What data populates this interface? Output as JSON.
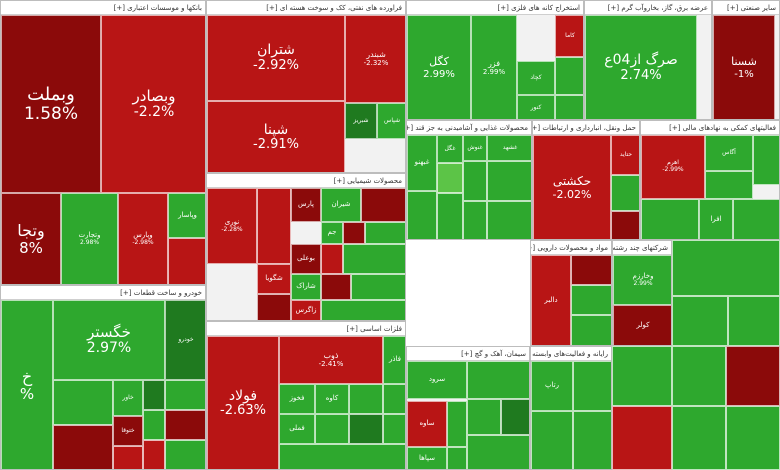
{
  "chart_data": {
    "type": "treemap",
    "colors": {
      "dark_red": "#8b0a0a",
      "red": "#b81515",
      "bright_red": "#e01818",
      "dark_green": "#1f7a1f",
      "green": "#2ea82e",
      "light_green": "#5cc447"
    },
    "sectors": [
      {
        "name": "بانکها و موسسات اعتباری [+]",
        "tiles": [
          {
            "symbol": "وبملت",
            "change": "1.58%"
          },
          {
            "symbol": "وبصادر",
            "change": "-2.2%"
          },
          {
            "symbol": "وتجا",
            "change": "8%"
          },
          {
            "symbol": "وتجارت",
            "change": "2.98%"
          },
          {
            "symbol": "وپارس",
            "change": "-2.98%"
          },
          {
            "symbol": "وپاسار",
            "change": ""
          }
        ]
      },
      {
        "name": "خودرو و ساخت قطعات [+]",
        "tiles": [
          {
            "symbol": "خگستر",
            "change": "2.97%"
          },
          {
            "symbol": "خ",
            "change": "%"
          },
          {
            "symbol": "خودرو",
            "change": ""
          },
          {
            "symbol": "ختوقا",
            "change": ""
          },
          {
            "symbol": "خاور",
            "change": ""
          }
        ]
      },
      {
        "name": "فراورده های نفتی، کک و سوخت هسته ای [+]",
        "tiles": [
          {
            "symbol": "شتران",
            "change": "-2.92%"
          },
          {
            "symbol": "شپنا",
            "change": "-2.91%"
          },
          {
            "symbol": "شبندر",
            "change": "-2.32%"
          },
          {
            "symbol": "شبریز",
            "change": ""
          },
          {
            "symbol": "شپاس",
            "change": ""
          }
        ]
      },
      {
        "name": "محصولات شیمیایی [+]",
        "tiles": [
          {
            "symbol": "نوری",
            "change": "-2.28%"
          },
          {
            "symbol": "پارس",
            "change": ""
          },
          {
            "symbol": "شیران",
            "change": ""
          },
          {
            "symbol": "بوعلی",
            "change": ""
          },
          {
            "symbol": "شگویا",
            "change": ""
          },
          {
            "symbol": "جم",
            "change": ""
          },
          {
            "symbol": "شاراک",
            "change": ""
          },
          {
            "symbol": "زاگرس",
            "change": ""
          }
        ]
      },
      {
        "name": "فلزات اساسی [+]",
        "tiles": [
          {
            "symbol": "فولاد",
            "change": "-2.63%"
          },
          {
            "symbol": "ذوب",
            "change": "-2.41%"
          },
          {
            "symbol": "فخوز",
            "change": ""
          },
          {
            "symbol": "فملی",
            "change": ""
          },
          {
            "symbol": "کاوه",
            "change": ""
          },
          {
            "symbol": "فاذر",
            "change": ""
          }
        ]
      },
      {
        "name": "استخراج کانه های فلزی [+]",
        "tiles": [
          {
            "symbol": "کگل",
            "change": "2.99%"
          },
          {
            "symbol": "فزر",
            "change": "2.99%"
          },
          {
            "symbol": "کاما",
            "change": ""
          },
          {
            "symbol": "کچاد",
            "change": ""
          },
          {
            "symbol": "کنور",
            "change": ""
          }
        ]
      },
      {
        "name": "عرضه برق، گاز، بخاروآب گرم [+]",
        "tiles": [
          {
            "symbol": "صرگ از04ع",
            "change": "2.74%"
          }
        ]
      },
      {
        "name": "سایر صنعتی [+]",
        "tiles": [
          {
            "symbol": "شسنا",
            "change": "-1%"
          }
        ]
      },
      {
        "name": "محصولات غذایی و آشامیدنی به جز قند [+]",
        "tiles": [
          {
            "symbol": "غبهنو",
            "change": ""
          },
          {
            "symbol": "غنوش",
            "change": ""
          },
          {
            "symbol": "غگل",
            "change": ""
          },
          {
            "symbol": "غشهد",
            "change": ""
          }
        ]
      },
      {
        "name": "حمل ونقل، انبارداری و ارتباطات [+]",
        "tiles": [
          {
            "symbol": "حکشتی",
            "change": "-2.02%"
          },
          {
            "symbol": "حتاید",
            "change": ""
          }
        ]
      },
      {
        "name": "فعالیتهای کمکی به نهادهای مالی [+]",
        "tiles": [
          {
            "symbol": "اهرم",
            "change": "-2.99%"
          },
          {
            "symbol": "آگاس",
            "change": ""
          },
          {
            "symbol": "افرا",
            "change": ""
          }
        ]
      },
      {
        "name": "سیمان، آهک و گچ [+]",
        "tiles": [
          {
            "symbol": "سرود",
            "change": ""
          },
          {
            "symbol": "ساوه",
            "change": ""
          },
          {
            "symbol": "سپاها",
            "change": ""
          }
        ]
      },
      {
        "name": "مواد و محصولات دارویی [+]",
        "tiles": [
          {
            "symbol": "دالبر",
            "change": ""
          }
        ]
      },
      {
        "name": "رایانه و فعالیت‌های وابسته [+]",
        "tiles": [
          {
            "symbol": "رتاپ",
            "change": ""
          }
        ]
      },
      {
        "name": "شرکتهای چند رشته ای [+]",
        "tiles": [
          {
            "symbol": "وخارزم",
            "change": "2.99%"
          },
          {
            "symbol": "کولر",
            "change": ""
          }
        ]
      }
    ]
  }
}
